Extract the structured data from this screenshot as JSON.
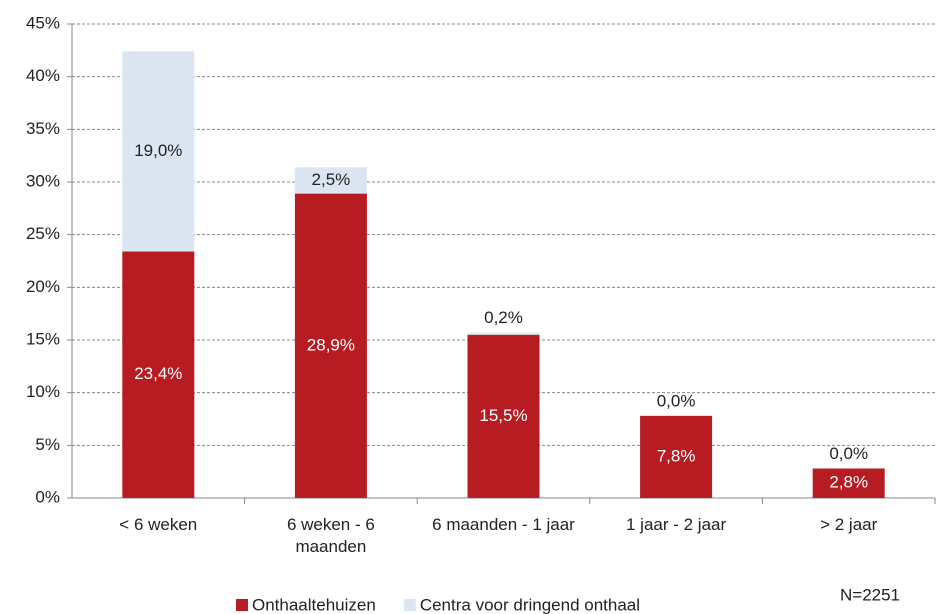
{
  "chart_data": {
    "type": "stacked_bar",
    "categories": [
      "< 6 weken",
      "6 weken - 6 maanden",
      "6 maanden - 1 jaar",
      "1 jaar - 2 jaar",
      "> 2 jaar"
    ],
    "series": [
      {
        "name": "Onthaaltehuizen",
        "color": "#b81c23",
        "values": [
          23.4,
          28.9,
          15.5,
          7.8,
          2.8
        ],
        "value_labels": [
          "23,4%",
          "28,9%",
          "15,5%",
          "7,8%",
          "2,8%"
        ]
      },
      {
        "name": "Centra voor dringend onthaal",
        "color": "#dce6f2",
        "values": [
          19.0,
          2.5,
          0.2,
          0.0,
          0.0
        ],
        "value_labels": [
          "19,0%",
          "2,5%",
          "0,2%",
          "0,0%",
          "0,0%"
        ]
      }
    ],
    "ylim": [
      0,
      45
    ],
    "yticks": [
      {
        "value": 0,
        "label": "0%"
      },
      {
        "value": 5,
        "label": "5%"
      },
      {
        "value": 10,
        "label": "10%"
      },
      {
        "value": 15,
        "label": "15%"
      },
      {
        "value": 20,
        "label": "20%"
      },
      {
        "value": 25,
        "label": "25%"
      },
      {
        "value": 30,
        "label": "30%"
      },
      {
        "value": 35,
        "label": "35%"
      },
      {
        "value": 40,
        "label": "40%"
      },
      {
        "value": 45,
        "label": "45%"
      }
    ],
    "grid": true,
    "legend": "bottom",
    "annotation": "N=2251"
  }
}
